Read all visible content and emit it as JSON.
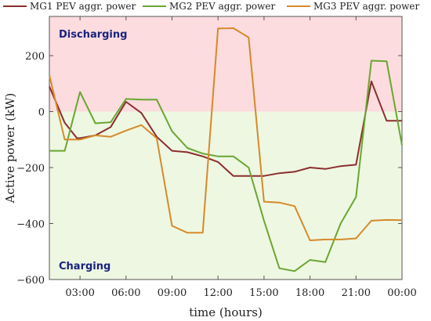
{
  "chart_data": {
    "type": "line",
    "xlabel": "time (hours)",
    "ylabel": "Active power (kW)",
    "xlim": [
      1,
      24
    ],
    "ylim": [
      -600,
      340
    ],
    "x_ticks": [
      {
        "value": 3,
        "label": "03:00"
      },
      {
        "value": 6,
        "label": "06:00"
      },
      {
        "value": 9,
        "label": "09:00"
      },
      {
        "value": 12,
        "label": "12:00"
      },
      {
        "value": 15,
        "label": "15:00"
      },
      {
        "value": 18,
        "label": "18:00"
      },
      {
        "value": 21,
        "label": "21:00"
      },
      {
        "value": 24,
        "label": "00:00"
      }
    ],
    "y_ticks": [
      {
        "value": 200,
        "label": "200"
      },
      {
        "value": 0,
        "label": "0"
      },
      {
        "value": -200,
        "label": "−200"
      },
      {
        "value": -400,
        "label": "−400"
      },
      {
        "value": -600,
        "label": "−600"
      }
    ],
    "regions": [
      {
        "label": "Discharging",
        "from": 0,
        "to": 340,
        "color": "#fcdcde",
        "label_color": "#1a237e"
      },
      {
        "label": "Charging",
        "from": -600,
        "to": 0,
        "color": "#eef7e2",
        "label_color": "#1a237e"
      }
    ],
    "legend_position": "top",
    "grid": false,
    "series": [
      {
        "name": "MG1 PEV aggr. power",
        "color": "#8b2e2e",
        "points": [
          [
            1,
            90
          ],
          [
            2,
            -40
          ],
          [
            2.8,
            -95
          ],
          [
            3,
            -95
          ],
          [
            4,
            -85
          ],
          [
            5,
            -55
          ],
          [
            6,
            35
          ],
          [
            7,
            -5
          ],
          [
            8,
            -90
          ],
          [
            9,
            -140
          ],
          [
            10,
            -145
          ],
          [
            11,
            -160
          ],
          [
            12,
            -180
          ],
          [
            13,
            -230
          ],
          [
            14,
            -230
          ],
          [
            15,
            -230
          ],
          [
            16,
            -220
          ],
          [
            17,
            -215
          ],
          [
            18,
            -200
          ],
          [
            19,
            -205
          ],
          [
            20,
            -195
          ],
          [
            21,
            -190
          ],
          [
            22,
            108
          ],
          [
            23,
            -33
          ],
          [
            24,
            -33
          ]
        ]
      },
      {
        "name": "MG2 PEV aggr. power",
        "color": "#6aa632",
        "points": [
          [
            1,
            -140
          ],
          [
            2,
            -140
          ],
          [
            3,
            70
          ],
          [
            4,
            -42
          ],
          [
            5,
            -38
          ],
          [
            6,
            45
          ],
          [
            7,
            43
          ],
          [
            8,
            43
          ],
          [
            9,
            -70
          ],
          [
            10,
            -130
          ],
          [
            11,
            -150
          ],
          [
            12,
            -160
          ],
          [
            13,
            -160
          ],
          [
            14,
            -200
          ],
          [
            15,
            -390
          ],
          [
            16,
            -560
          ],
          [
            17,
            -570
          ],
          [
            18,
            -530
          ],
          [
            19,
            -538
          ],
          [
            20,
            -400
          ],
          [
            21,
            -305
          ],
          [
            22,
            182
          ],
          [
            23,
            180
          ],
          [
            24,
            -120
          ]
        ]
      },
      {
        "name": "MG3 PEV aggr. power",
        "color": "#d58a2a",
        "points": [
          [
            1,
            130
          ],
          [
            2,
            -100
          ],
          [
            3,
            -100
          ],
          [
            4,
            -85
          ],
          [
            5,
            -90
          ],
          [
            6,
            -68
          ],
          [
            7,
            -48
          ],
          [
            8,
            -95
          ],
          [
            9,
            -408
          ],
          [
            10,
            -433
          ],
          [
            11,
            -433
          ],
          [
            12,
            297
          ],
          [
            13,
            298
          ],
          [
            14,
            265
          ],
          [
            15,
            -322
          ],
          [
            16,
            -325
          ],
          [
            17,
            -338
          ],
          [
            18,
            -460
          ],
          [
            19,
            -457
          ],
          [
            20,
            -457
          ],
          [
            21,
            -453
          ],
          [
            22,
            -390
          ],
          [
            23,
            -387
          ],
          [
            24,
            -388
          ]
        ]
      }
    ]
  }
}
